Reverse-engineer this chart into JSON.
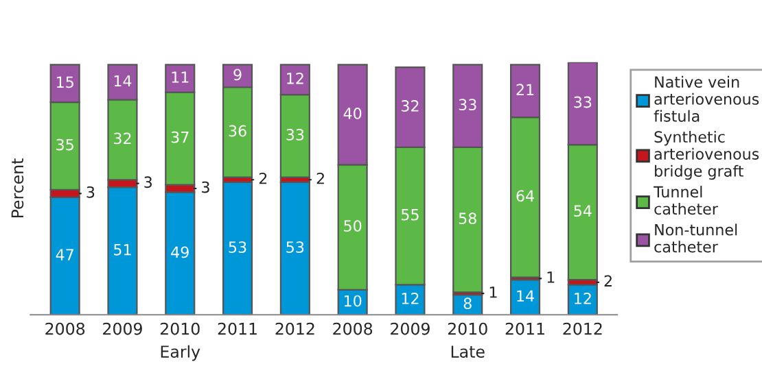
{
  "chart_data": {
    "type": "bar",
    "stacked": true,
    "ylabel": "Percent",
    "tick_labels": "x",
    "grid": false,
    "legend": "right",
    "data_labels": true,
    "categories": [
      "2008",
      "2009",
      "2010",
      "2011",
      "2012",
      "2008",
      "2009",
      "2010",
      "2011",
      "2012"
    ],
    "annotations": [
      "Early",
      "Late"
    ],
    "series": [
      {
        "name": "Native vein arteriovenous fistula",
        "color": "#0097d8",
        "values": [
          47,
          51,
          49,
          53,
          53,
          10,
          12,
          8,
          14,
          12
        ]
      },
      {
        "name": "Synthetic arteriovenous bridge graft",
        "color": "#c4161c",
        "values": [
          3,
          3,
          3,
          2,
          2,
          null,
          null,
          1,
          1,
          2
        ]
      },
      {
        "name": "Tunnel catheter",
        "color": "#5db947",
        "values": [
          35,
          32,
          37,
          36,
          33,
          50,
          55,
          58,
          64,
          54
        ]
      },
      {
        "name": "Non-tunnel catheter",
        "color": "#9b54a3",
        "values": [
          15,
          14,
          11,
          9,
          12,
          40,
          32,
          33,
          21,
          33
        ]
      }
    ]
  }
}
